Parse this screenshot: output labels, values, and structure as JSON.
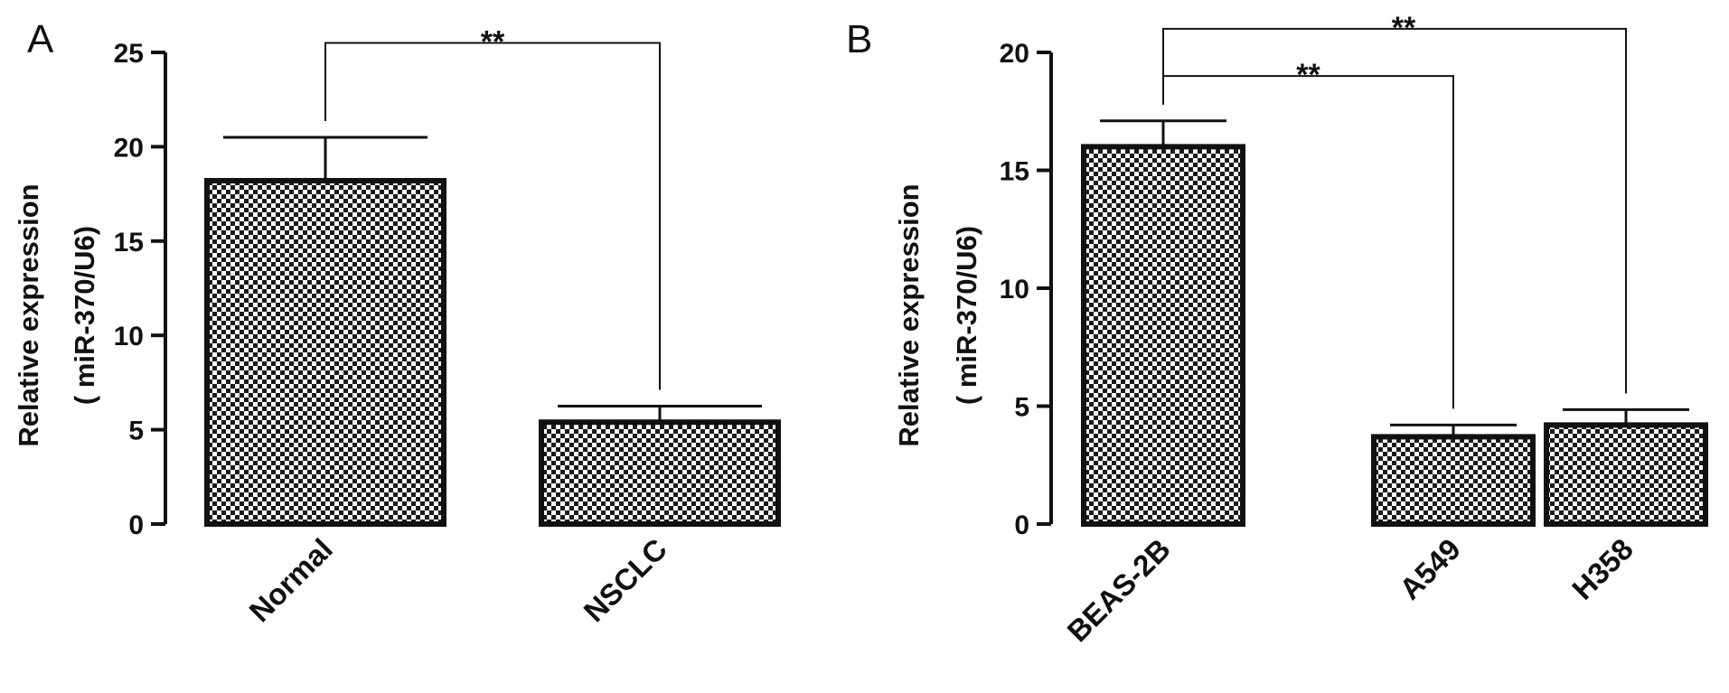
{
  "chart_data": [
    {
      "panel": "A",
      "type": "bar",
      "ylabel_line1": "Relative expression",
      "ylabel_line2": "( miR-370/U6)",
      "ylim": [
        0,
        25
      ],
      "yticks": [
        0,
        5,
        10,
        15,
        20,
        25
      ],
      "categories": [
        "Normal",
        "NSCLC"
      ],
      "values": [
        18.2,
        5.4
      ],
      "errors": [
        2.3,
        0.85
      ],
      "significance": [
        {
          "from": 0,
          "to": 1,
          "y": 25.5,
          "label": "**"
        }
      ]
    },
    {
      "panel": "B",
      "type": "bar",
      "ylabel_line1": "Relative expression",
      "ylabel_line2": "( miR-370/U6)",
      "ylim": [
        0,
        20
      ],
      "yticks": [
        0,
        5,
        10,
        15,
        20
      ],
      "categories": [
        "BEAS-2B",
        "A549",
        "H358"
      ],
      "values": [
        16.0,
        3.7,
        4.2
      ],
      "errors": [
        1.1,
        0.5,
        0.65
      ],
      "significance": [
        {
          "from": 0,
          "to": 1,
          "y": 19.0,
          "label": "**"
        },
        {
          "from": 0,
          "to": 2,
          "y": 21.0,
          "label": "**"
        }
      ]
    }
  ]
}
